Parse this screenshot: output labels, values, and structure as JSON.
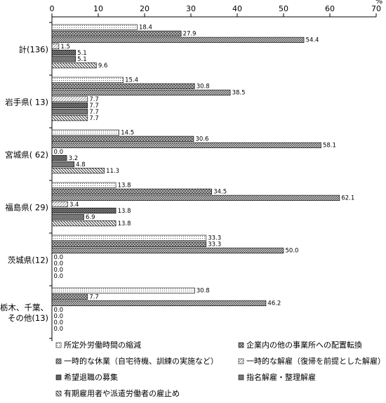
{
  "chart_data": {
    "type": "bar",
    "orientation": "horizontal",
    "unit": "%",
    "xlim": [
      0,
      70
    ],
    "xticks": [
      0,
      10,
      20,
      30,
      40,
      50,
      60,
      70
    ],
    "grid": false,
    "legend_position": "bottom",
    "categories": [
      "計(136)",
      "岩手県(13)",
      "宮城県(62)",
      "福島県(29)",
      "茨城県(12)",
      "栃木、千葉、その他(13)"
    ],
    "category_display": [
      "計(136)",
      "岩手県( 13)",
      "宮城県( 62)",
      "福島県( 29)",
      "茨城県(12)",
      "栃木、千葉、|その他(13)"
    ],
    "series": [
      {
        "name": "所定外労働時間の縮減",
        "values": [
          18.4,
          15.4,
          14.5,
          13.8,
          33.3,
          30.8
        ]
      },
      {
        "name": "企業内の他の事業所への配置転換",
        "values": [
          27.9,
          30.8,
          30.6,
          34.5,
          33.3,
          7.7
        ]
      },
      {
        "name": "一時的な休業（自宅待機、訓練の実施など）",
        "values": [
          54.4,
          38.5,
          58.1,
          62.1,
          50.0,
          46.2
        ]
      },
      {
        "name": "一時的な解雇（復帰を前提とした解雇）",
        "values": [
          1.5,
          7.7,
          0.0,
          3.4,
          0.0,
          0.0
        ]
      },
      {
        "name": "希望退職の募集",
        "values": [
          5.1,
          7.7,
          3.2,
          13.8,
          0.0,
          0.0
        ]
      },
      {
        "name": "指名解雇・整理解雇",
        "values": [
          5.1,
          7.7,
          4.8,
          6.9,
          0.0,
          0.0
        ]
      },
      {
        "name": "有期雇用者や派遣労働者の雇止め",
        "values": [
          9.6,
          7.7,
          11.3,
          13.8,
          0.0,
          0.0
        ]
      }
    ],
    "series_styles": [
      {
        "pattern": "dots",
        "fill": "#f2f2f2"
      },
      {
        "pattern": "crosshatch",
        "fill": "#bdbdbd"
      },
      {
        "pattern": "diag-dense",
        "fill": "#d0d0d0"
      },
      {
        "pattern": "diag-light",
        "fill": "#ffffff"
      },
      {
        "pattern": "crosshatch-dense",
        "fill": "#8c8c8c"
      },
      {
        "pattern": "solid",
        "fill": "#6e6e6e"
      },
      {
        "pattern": "diag-back",
        "fill": "#b3b3b3"
      }
    ]
  }
}
